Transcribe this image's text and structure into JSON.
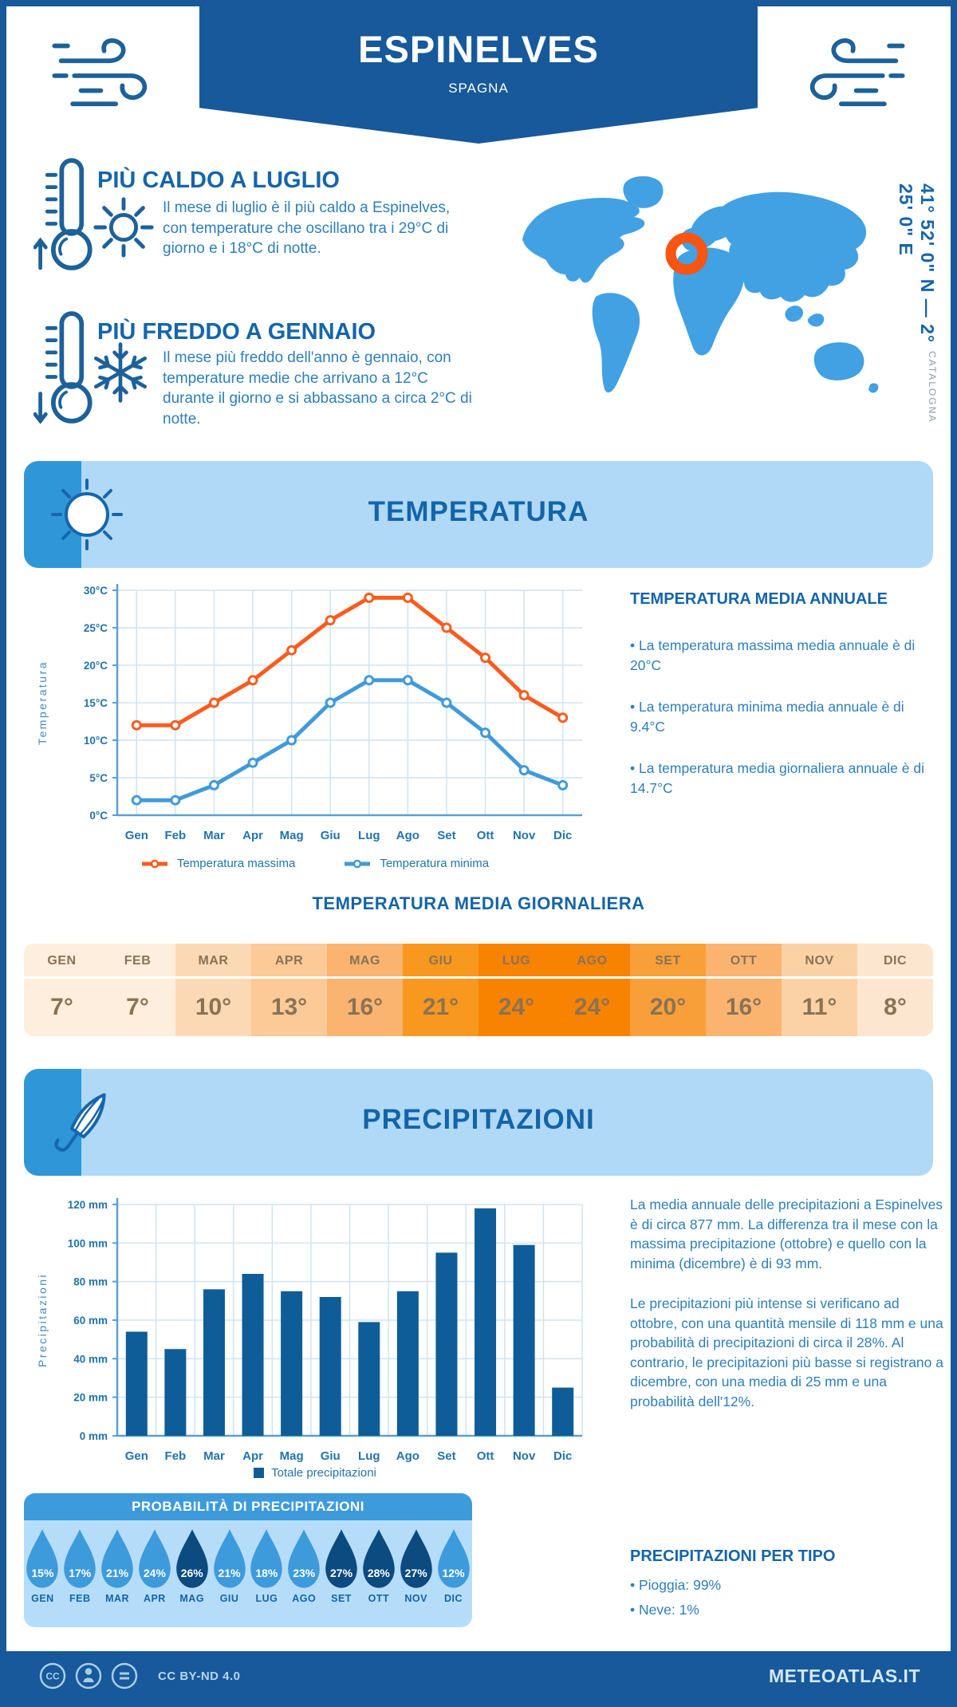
{
  "meta": {
    "brand": "METEOATLAS.IT",
    "license": "CC BY-ND 4.0"
  },
  "header": {
    "title": "ESPINELVES",
    "subtitle": "SPAGNA"
  },
  "location": {
    "coordinates": "41° 52' 0\" N — 2° 25' 0\" E",
    "region": "CATALOGNA"
  },
  "highlights": {
    "hot": {
      "title": "PIÙ CALDO A LUGLIO",
      "text": "Il mese di luglio è il più caldo a Espinelves, con temperature che oscillano tra i 29°C di giorno e i 18°C di notte."
    },
    "cold": {
      "title": "PIÙ FREDDO A GENNAIO",
      "text": "Il mese più freddo dell'anno è gennaio, con temperature medie che arrivano a 12°C durante il giorno e si abbassano a circa 2°C di notte."
    }
  },
  "temperature_section": {
    "title": "TEMPERATURA",
    "annual": {
      "title": "TEMPERATURA MEDIA ANNUALE",
      "bullets": [
        "• La temperatura massima media annuale è di 20°C",
        "• La temperatura minima media annuale è di 9.4°C",
        "• La temperatura media giornaliera annuale è di 14.7°C"
      ]
    },
    "daily_title": "TEMPERATURA MEDIA GIORNALIERA"
  },
  "chart_data": [
    {
      "type": "line",
      "categories": [
        "Gen",
        "Feb",
        "Mar",
        "Apr",
        "Mag",
        "Giu",
        "Lug",
        "Ago",
        "Set",
        "Ott",
        "Nov",
        "Dic"
      ],
      "series": [
        {
          "name": "Temperatura massima",
          "color": "#f85c1f",
          "values": [
            12,
            12,
            15,
            18,
            22,
            26,
            29,
            29,
            25,
            21,
            16,
            13
          ]
        },
        {
          "name": "Temperatura minima",
          "color": "#419ad9",
          "values": [
            2,
            2,
            4,
            7,
            10,
            15,
            18,
            18,
            15,
            11,
            6,
            4
          ]
        }
      ],
      "title": "",
      "xlabel": "",
      "ylabel": "Temperatura",
      "ylim": [
        0,
        30
      ],
      "ytick_step": 5,
      "ytick_suffix": "°C",
      "grid": true,
      "legend_position": "bottom"
    },
    {
      "type": "bar",
      "categories": [
        "Gen",
        "Feb",
        "Mar",
        "Apr",
        "Mag",
        "Giu",
        "Lug",
        "Ago",
        "Set",
        "Ott",
        "Nov",
        "Dic"
      ],
      "series": [
        {
          "name": "Totale precipitazioni",
          "color": "#0e5d98",
          "values": [
            54,
            45,
            76,
            84,
            75,
            72,
            59,
            75,
            95,
            118,
            99,
            25
          ]
        }
      ],
      "title": "",
      "xlabel": "",
      "ylabel": "Precipitazioni",
      "ylim": [
        0,
        120
      ],
      "ytick_step": 20,
      "ytick_suffix": " mm",
      "grid": true,
      "legend_position": "bottom"
    }
  ],
  "monthly_table": {
    "months": [
      "GEN",
      "FEB",
      "MAR",
      "APR",
      "MAG",
      "GIU",
      "LUG",
      "AGO",
      "SET",
      "OTT",
      "NOV",
      "DIC"
    ],
    "values": [
      "7°",
      "7°",
      "10°",
      "13°",
      "16°",
      "21°",
      "24°",
      "24°",
      "20°",
      "16°",
      "11°",
      "8°"
    ],
    "colors": [
      "#fdeedd",
      "#fdeedd",
      "#fcd9b5",
      "#fbca97",
      "#fab470",
      "#f9981f",
      "#f88300",
      "#f88300",
      "#f99f39",
      "#fab470",
      "#fbd2a6",
      "#fce6cf"
    ],
    "text_color": "#8a7255"
  },
  "precipitation_section": {
    "title": "PRECIPITAZIONI",
    "paragraphs": [
      "La media annuale delle precipitazioni a Espinelves è di circa 877 mm. La differenza tra il mese con la massima precipitazione (ottobre) e quello con la minima (dicembre) è di 93 mm.",
      "Le precipitazioni più intense si verificano ad ottobre, con una quantità mensile di 118 mm e una probabilità di precipitazioni di circa il 28%. Al contrario, le precipitazioni più basse si registrano a dicembre, con una media di 25 mm e una probabilità dell'12%."
    ],
    "probability": {
      "title": "PROBABILITÀ DI PRECIPITAZIONI",
      "months": [
        "GEN",
        "FEB",
        "MAR",
        "APR",
        "MAG",
        "GIU",
        "LUG",
        "AGO",
        "SET",
        "OTT",
        "NOV",
        "DIC"
      ],
      "values": [
        "15%",
        "17%",
        "21%",
        "24%",
        "26%",
        "21%",
        "18%",
        "23%",
        "27%",
        "28%",
        "27%",
        "12%"
      ],
      "dark": [
        false,
        false,
        false,
        false,
        true,
        false,
        false,
        false,
        true,
        true,
        true,
        false
      ],
      "colors": {
        "normal": "#3e9bdb",
        "dark": "#0c4b80"
      }
    },
    "by_type": {
      "title": "PRECIPITAZIONI PER TIPO",
      "bullets": [
        "• Pioggia: 99%",
        "• Neve: 1%"
      ]
    }
  },
  "palette": {
    "navy": "#17599a",
    "banner_light": "#b0d9f8",
    "banner_corner": "#2f96d8",
    "heading_blue": "#1464a8",
    "body_blue": "#2e7ebd",
    "map_blue": "#41a1e3",
    "marker_orange": "#f85414",
    "grid_line": "#cfe3f2",
    "axis_blue": "#5b9fd3",
    "tick_blue": "#2273ae"
  }
}
